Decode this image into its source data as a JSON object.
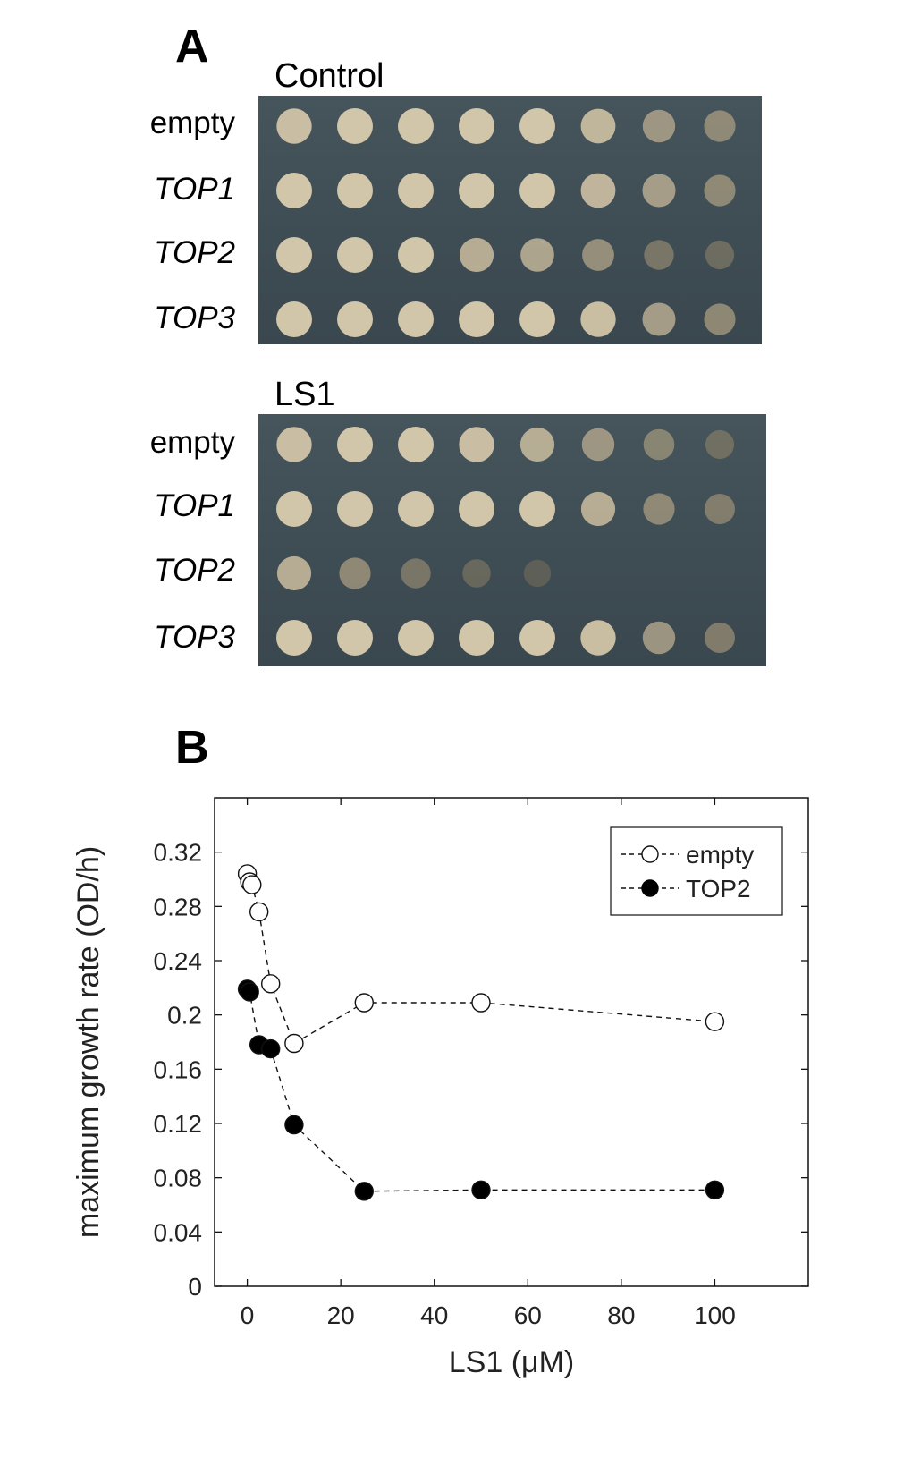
{
  "panel_a": {
    "letter": "A",
    "plates": [
      {
        "title": "Control",
        "rows": [
          {
            "label": "empty",
            "italic": false,
            "growth": [
              0.95,
              1,
              1,
              1,
              1,
              0.9,
              0.7,
              0.6
            ]
          },
          {
            "label": "TOP1",
            "italic": true,
            "growth": [
              1,
              1,
              1,
              1,
              1,
              0.9,
              0.75,
              0.6
            ]
          },
          {
            "label": "TOP2",
            "italic": true,
            "growth": [
              1,
              1,
              1,
              0.85,
              0.8,
              0.65,
              0.45,
              0.35
            ]
          },
          {
            "label": "TOP3",
            "italic": true,
            "growth": [
              1,
              1,
              1,
              1,
              1,
              0.95,
              0.75,
              0.6
            ]
          }
        ]
      },
      {
        "title": "LS1",
        "rows": [
          {
            "label": "empty",
            "italic": false,
            "growth": [
              0.95,
              1,
              1,
              0.95,
              0.85,
              0.7,
              0.55,
              0.35
            ]
          },
          {
            "label": "TOP1",
            "italic": true,
            "growth": [
              1,
              1,
              1,
              1,
              1,
              0.85,
              0.6,
              0.5
            ]
          },
          {
            "label": "TOP2",
            "italic": true,
            "growth": [
              0.85,
              0.6,
              0.45,
              0.3,
              0.2,
              0,
              0,
              0
            ]
          },
          {
            "label": "TOP3",
            "italic": true,
            "growth": [
              1,
              1,
              1,
              1,
              1,
              0.95,
              0.7,
              0.5
            ]
          }
        ]
      }
    ]
  },
  "panel_b": {
    "letter": "B"
  },
  "chart_data": {
    "type": "scatter",
    "title": "",
    "xlabel": "LS1 (μM)",
    "ylabel": "maximum growth rate (OD/h)",
    "xlim": [
      -7,
      120
    ],
    "ylim": [
      0,
      0.36
    ],
    "xticks": [
      0,
      20,
      40,
      60,
      80,
      100
    ],
    "yticks": [
      0,
      0.04,
      0.08,
      0.12,
      0.16,
      0.2,
      0.24,
      0.28,
      0.32
    ],
    "ytick_labels": [
      "0",
      "0.04",
      "0.08",
      "0.12",
      "0.16",
      "0.2",
      "0.24",
      "0.28",
      "0.32"
    ],
    "legend_position": "top-right",
    "series": [
      {
        "name": "empty",
        "marker": "open-circle",
        "line": "dashed",
        "x": [
          0,
          0.5,
          1,
          2.5,
          5,
          10,
          25,
          50,
          100
        ],
        "y": [
          0.304,
          0.298,
          0.296,
          0.276,
          0.223,
          0.179,
          0.209,
          0.209,
          0.195
        ]
      },
      {
        "name": "TOP2",
        "marker": "filled-circle",
        "line": "dashed",
        "x": [
          0,
          0.5,
          2.5,
          5,
          10,
          25,
          50,
          100
        ],
        "y": [
          0.219,
          0.217,
          0.178,
          0.175,
          0.119,
          0.07,
          0.071,
          0.071
        ]
      }
    ]
  }
}
